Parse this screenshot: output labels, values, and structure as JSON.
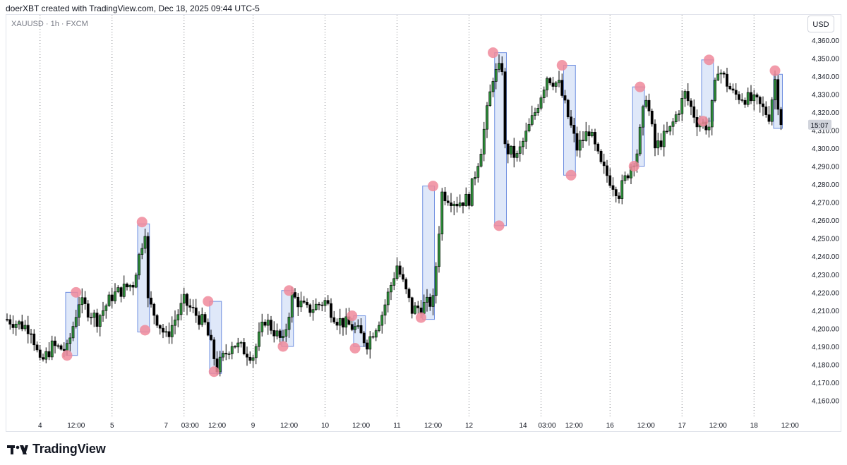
{
  "header": {
    "text": "doerXBT created with TradingView.com, Dec 18, 2025 09:44 UTC-5"
  },
  "symbol": {
    "label": "XAUUSD · 1h · FXCM"
  },
  "currency_button": {
    "label": "USD"
  },
  "logo": {
    "text": "TradingView"
  },
  "colors": {
    "up": "#2e8b3a",
    "down": "#000000",
    "wick": "#000000",
    "zone_fill": "#c9d8f5",
    "zone_stroke": "#6f8fe0",
    "marker": "#f08a9b",
    "grid": "#131722",
    "price_label_bg": "#d1d4dc"
  },
  "chart_data": {
    "type": "candlestick",
    "title": "",
    "ylim": [
      4152,
      4374
    ],
    "y_ticks": [
      "4,360.00",
      "4,350.00",
      "4,340.00",
      "4,330.00",
      "4,320.00",
      "4,310.00",
      "4,300.00",
      "4,290.00",
      "4,280.00",
      "4,270.00",
      "4,260.00",
      "4,250.00",
      "4,240.00",
      "4,230.00",
      "4,220.00",
      "4,210.00",
      "4,200.00",
      "4,190.00",
      "4,180.00",
      "4,170.00",
      "4,160.00"
    ],
    "y_tick_values": [
      4360,
      4350,
      4340,
      4330,
      4320,
      4310,
      4300,
      4290,
      4280,
      4270,
      4260,
      4250,
      4240,
      4230,
      4220,
      4210,
      4200,
      4190,
      4180,
      4170,
      4160
    ],
    "x_range": [
      0,
      258
    ],
    "x_ticks": [
      {
        "label": "4",
        "t": 11
      },
      {
        "label": "12:00",
        "t": 23
      },
      {
        "label": "5",
        "t": 35
      },
      {
        "label": "7",
        "t": 53
      },
      {
        "label": "03:00",
        "t": 61
      },
      {
        "label": "12:00",
        "t": 70
      },
      {
        "label": "9",
        "t": 82
      },
      {
        "label": "12:00",
        "t": 94
      },
      {
        "label": "10",
        "t": 106
      },
      {
        "label": "12:00",
        "t": 118
      },
      {
        "label": "11",
        "t": 130
      },
      {
        "label": "12:00",
        "t": 142
      },
      {
        "label": "12",
        "t": 154
      },
      {
        "label": "14",
        "t": 172
      },
      {
        "label": "03:00",
        "t": 180
      },
      {
        "label": "12:00",
        "t": 189
      },
      {
        "label": "16",
        "t": 201
      },
      {
        "label": "12:00",
        "t": 213
      },
      {
        "label": "17",
        "t": 225
      },
      {
        "label": "12:00",
        "t": 237
      },
      {
        "label": "18",
        "t": 249
      },
      {
        "label": "12:00",
        "t": 261
      }
    ],
    "session_lines": [
      11,
      35,
      59,
      82,
      106,
      130,
      154,
      178,
      201,
      225,
      249
    ],
    "last_price_label": "15:07",
    "last_price_value": 4313,
    "anchors": [
      [
        0,
        4205
      ],
      [
        8,
        4200
      ],
      [
        11,
        4180
      ],
      [
        15,
        4190
      ],
      [
        20,
        4188
      ],
      [
        24,
        4215
      ],
      [
        30,
        4205
      ],
      [
        35,
        4218
      ],
      [
        42,
        4225
      ],
      [
        46,
        4255
      ],
      [
        47,
        4215
      ],
      [
        53,
        4195
      ],
      [
        59,
        4215
      ],
      [
        66,
        4202
      ],
      [
        70,
        4178
      ],
      [
        75,
        4192
      ],
      [
        82,
        4185
      ],
      [
        86,
        4205
      ],
      [
        92,
        4192
      ],
      [
        95,
        4218
      ],
      [
        100,
        4210
      ],
      [
        106,
        4215
      ],
      [
        110,
        4205
      ],
      [
        116,
        4200
      ],
      [
        120,
        4192
      ],
      [
        125,
        4208
      ],
      [
        130,
        4235
      ],
      [
        135,
        4210
      ],
      [
        142,
        4215
      ],
      [
        145,
        4275
      ],
      [
        150,
        4270
      ],
      [
        154,
        4272
      ],
      [
        158,
        4300
      ],
      [
        162,
        4340
      ],
      [
        165,
        4345
      ],
      [
        166,
        4300
      ],
      [
        170,
        4295
      ],
      [
        176,
        4320
      ],
      [
        180,
        4340
      ],
      [
        184,
        4335
      ],
      [
        190,
        4300
      ],
      [
        194,
        4310
      ],
      [
        198,
        4290
      ],
      [
        204,
        4275
      ],
      [
        210,
        4298
      ],
      [
        213,
        4330
      ],
      [
        216,
        4300
      ],
      [
        221,
        4310
      ],
      [
        226,
        4330
      ],
      [
        230,
        4315
      ],
      [
        234,
        4312
      ],
      [
        237,
        4345
      ],
      [
        242,
        4330
      ],
      [
        246,
        4328
      ],
      [
        250,
        4325
      ],
      [
        254,
        4318
      ],
      [
        256,
        4338
      ],
      [
        258,
        4313
      ]
    ],
    "zones": [
      {
        "t0": 20,
        "t1": 23,
        "y0": 4185,
        "y1": 4220
      },
      {
        "t0": 44,
        "t1": 47,
        "y0": 4198,
        "y1": 4258
      },
      {
        "t0": 68,
        "t1": 71,
        "y0": 4175,
        "y1": 4215
      },
      {
        "t0": 92,
        "t1": 95,
        "y0": 4190,
        "y1": 4221
      },
      {
        "t0": 116,
        "t1": 119,
        "y0": 4190,
        "y1": 4207
      },
      {
        "t0": 139,
        "t1": 142,
        "y0": 4205,
        "y1": 4279
      },
      {
        "t0": 163,
        "t1": 166,
        "y0": 4257,
        "y1": 4353
      },
      {
        "t0": 186,
        "t1": 189,
        "y0": 4285,
        "y1": 4346
      },
      {
        "t0": 209,
        "t1": 212,
        "y0": 4290,
        "y1": 4334
      },
      {
        "t0": 232,
        "t1": 235,
        "y0": 4315,
        "y1": 4349
      },
      {
        "t0": 256,
        "t1": 258,
        "y0": 4311,
        "y1": 4341
      }
    ],
    "markers": [
      {
        "t": 20,
        "y": 4185
      },
      {
        "t": 23,
        "y": 4220
      },
      {
        "t": 45,
        "y": 4259
      },
      {
        "t": 46,
        "y": 4199
      },
      {
        "t": 67,
        "y": 4215
      },
      {
        "t": 69,
        "y": 4176
      },
      {
        "t": 92,
        "y": 4190
      },
      {
        "t": 94,
        "y": 4221
      },
      {
        "t": 115,
        "y": 4207
      },
      {
        "t": 116,
        "y": 4189
      },
      {
        "t": 138,
        "y": 4206
      },
      {
        "t": 142,
        "y": 4279
      },
      {
        "t": 162,
        "y": 4353
      },
      {
        "t": 164,
        "y": 4257
      },
      {
        "t": 185,
        "y": 4346
      },
      {
        "t": 188,
        "y": 4285
      },
      {
        "t": 209,
        "y": 4290
      },
      {
        "t": 211,
        "y": 4334
      },
      {
        "t": 232,
        "y": 4315
      },
      {
        "t": 234,
        "y": 4349
      },
      {
        "t": 256,
        "y": 4343
      }
    ]
  }
}
